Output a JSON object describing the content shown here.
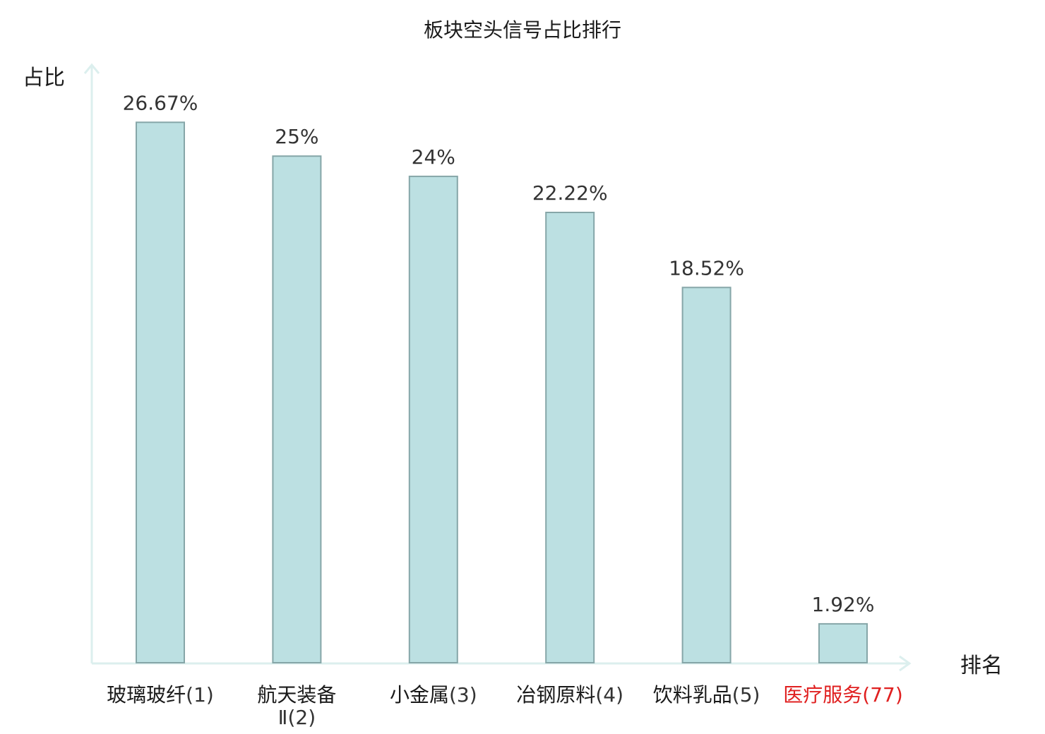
{
  "chart_data": {
    "type": "bar",
    "title": "板块空头信号占比排行",
    "xlabel": "排名",
    "ylabel": "占比",
    "categories": [
      {
        "name": "玻璃玻纤",
        "rank": "(1)"
      },
      {
        "name": "航天装备Ⅱ",
        "rank": "(2)"
      },
      {
        "name": "小金属",
        "rank": "(3)"
      },
      {
        "name": "冶钢原料",
        "rank": "(4)"
      },
      {
        "name": "饮料乳品",
        "rank": "(5)"
      },
      {
        "name": "医疗服务",
        "rank": "(77)"
      }
    ],
    "values": [
      26.67,
      25,
      24,
      22.22,
      18.52,
      1.92
    ],
    "value_labels": [
      "26.67%",
      "25%",
      "24%",
      "22.22%",
      "18.52%",
      "1.92%"
    ],
    "highlight_index": 5,
    "ylim": [
      0,
      29.5
    ],
    "grid": false,
    "legend": "none"
  },
  "colors": {
    "bar_fill": "#bce0e2",
    "bar_stroke": "#86a6a8",
    "axis": "#dcefee",
    "highlight": "#e02020",
    "text": "#1a1a1a",
    "label_text": "#333333"
  }
}
